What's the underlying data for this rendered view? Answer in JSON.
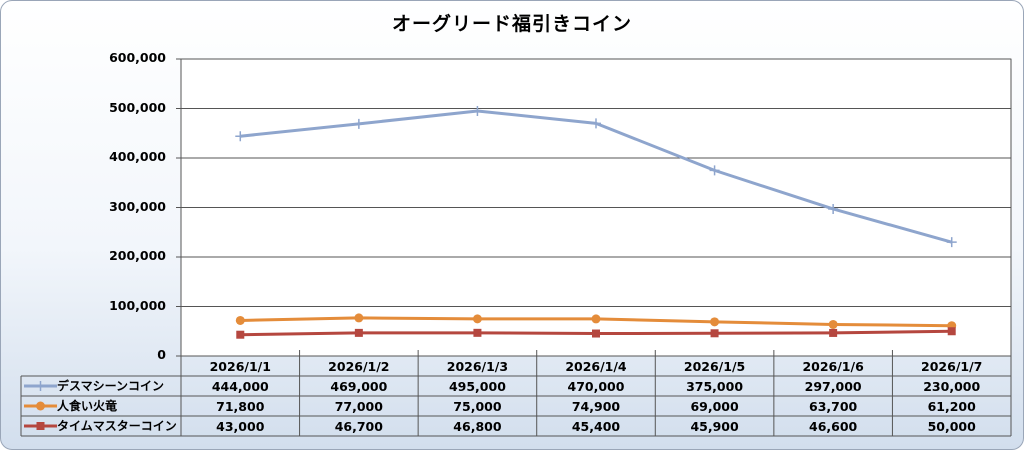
{
  "chart_data": {
    "type": "line",
    "title": "オーグリード福引きコイン",
    "categories": [
      "2026/1/1",
      "2026/1/2",
      "2026/1/3",
      "2026/1/4",
      "2026/1/5",
      "2026/1/6",
      "2026/1/7"
    ],
    "y_ticks": [
      "600,000",
      "500,000",
      "400,000",
      "300,000",
      "200,000",
      "100,000",
      "0"
    ],
    "ylim": [
      0,
      600000
    ],
    "grid": true,
    "legend": "data-table",
    "series": [
      {
        "name": "デスマシーンコイン",
        "color": "#8ea5cd",
        "marker": "plus",
        "values": [
          444000,
          469000,
          495000,
          470000,
          375000,
          297000,
          230000
        ],
        "labels": [
          "444,000",
          "469,000",
          "495,000",
          "470,000",
          "375,000",
          "297,000",
          "230,000"
        ]
      },
      {
        "name": "人食い火竜",
        "color": "#e48c3a",
        "marker": "circle",
        "values": [
          71800,
          77000,
          75000,
          74900,
          69000,
          63700,
          61200
        ],
        "labels": [
          "71,800",
          "77,000",
          "75,000",
          "74,900",
          "69,000",
          "63,700",
          "61,200"
        ]
      },
      {
        "name": "タイムマスターコイン",
        "color": "#b5473f",
        "marker": "square",
        "values": [
          43000,
          46700,
          46800,
          45400,
          45900,
          46600,
          50000
        ],
        "labels": [
          "43,000",
          "46,700",
          "46,800",
          "45,400",
          "45,900",
          "46,600",
          "50,000"
        ]
      }
    ]
  }
}
